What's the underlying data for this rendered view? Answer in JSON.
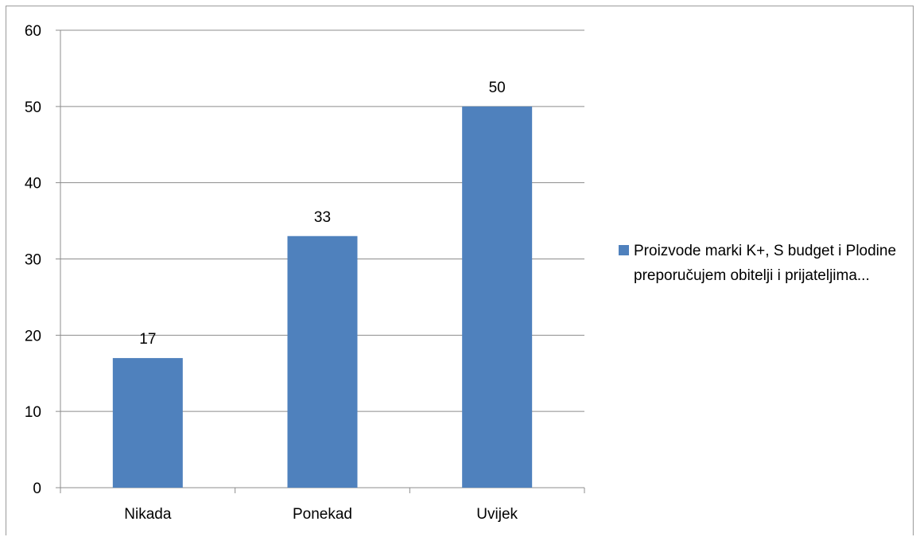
{
  "chart_data": {
    "type": "bar",
    "categories": [
      "Nikada",
      "Ponekad",
      "Uvijek"
    ],
    "series": [
      {
        "name": "Proizvode marki K+, S budget i Plodine preporučujem obitelji i prijateljima...",
        "values": [
          17,
          33,
          50
        ],
        "color": "#4f81bd"
      }
    ],
    "data_labels": [
      "17",
      "33",
      "50"
    ],
    "y_ticks": [
      "0",
      "10",
      "20",
      "30",
      "40",
      "50",
      "60"
    ],
    "ylim": [
      0,
      60
    ],
    "title": "",
    "xlabel": "",
    "ylabel": "",
    "grid": true,
    "legend_position": "right"
  },
  "legend": {
    "label": "Proizvode marki K+, S budget i Plodine preporučujem obitelji i prijateljima..."
  }
}
